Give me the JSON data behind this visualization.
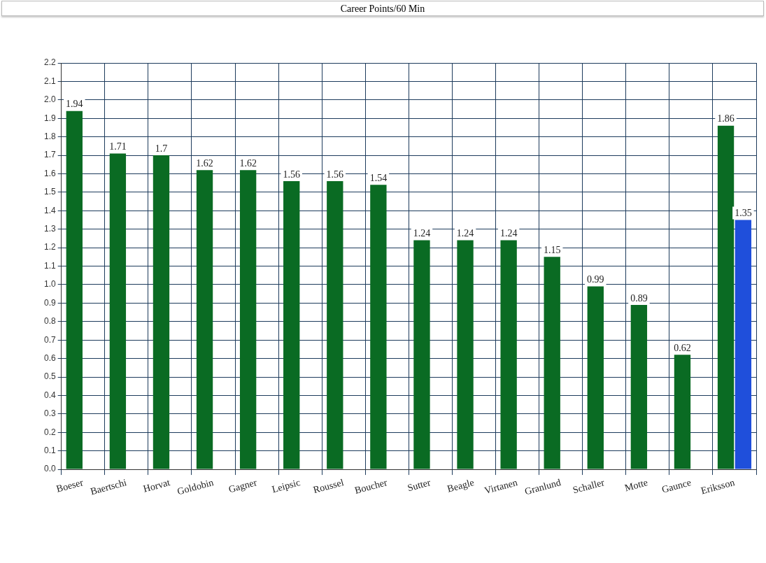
{
  "chart_data": {
    "type": "bar",
    "title": "Career Points/60 Min",
    "categories": [
      "Boeser",
      "Baertschi",
      "Horvat",
      "Goldobin",
      "Gagner",
      "Leipsic",
      "Roussel",
      "Boucher",
      "Sutter",
      "Beagle",
      "Virtanen",
      "Granlund",
      "Schaller",
      "Motte",
      "Gaunce",
      "Eriksson"
    ],
    "series": [
      {
        "color": "#0a6b23",
        "values": [
          1.94,
          1.71,
          1.7,
          1.62,
          1.62,
          1.56,
          1.56,
          1.54,
          1.24,
          1.24,
          1.24,
          1.15,
          0.99,
          0.89,
          0.62,
          1.86
        ]
      },
      {
        "color": "#1f4fdb",
        "values": [
          null,
          null,
          null,
          null,
          null,
          null,
          null,
          null,
          null,
          null,
          null,
          null,
          null,
          null,
          null,
          1.35
        ]
      }
    ],
    "ylim": [
      0,
      2.2
    ],
    "yticks": [
      {
        "value": 0,
        "label": "0.0"
      },
      0.1,
      0.2,
      0.3,
      0.4,
      0.5,
      0.6,
      0.7,
      0.8,
      0.9,
      {
        "value": 1,
        "label": "1.0"
      },
      1.1,
      1.2,
      1.3,
      1.4,
      1.5,
      1.6,
      1.7,
      1.8,
      1.9,
      {
        "value": 2,
        "label": "2.0"
      },
      2.1,
      2.2
    ],
    "grid": true,
    "data_labels": true,
    "legend": false
  }
}
